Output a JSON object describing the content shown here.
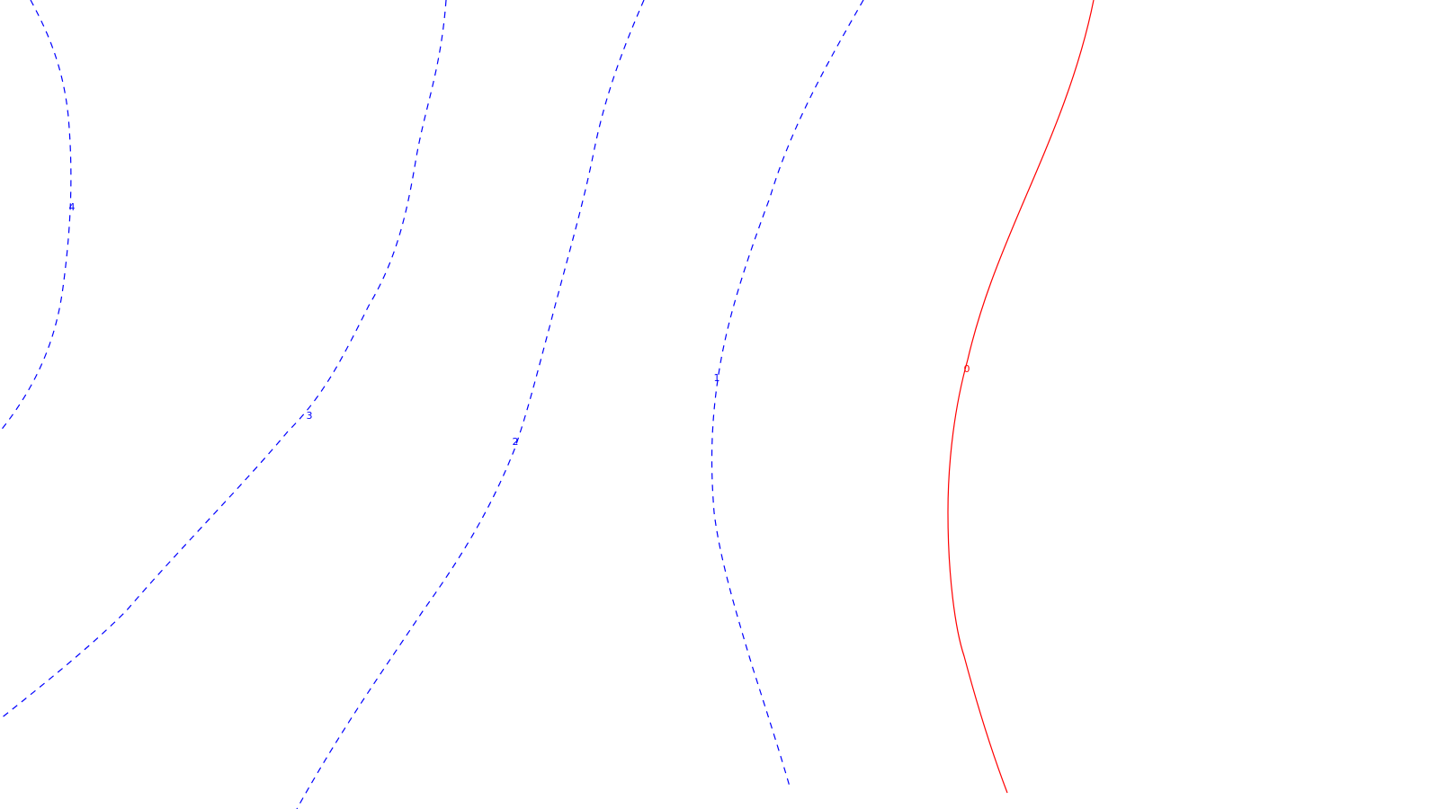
{
  "map": {
    "background_color": "#ffffff",
    "contours": [
      {
        "level": "4",
        "label": "4",
        "color": "#0000ff",
        "style": "dashed"
      },
      {
        "level": "3",
        "label": "3",
        "color": "#0000ff",
        "style": "dashed"
      },
      {
        "level": "2",
        "label": "2",
        "color": "#0000ff",
        "style": "dashed"
      },
      {
        "level": "1",
        "label": "1",
        "color": "#0000ff",
        "style": "dashed"
      },
      {
        "level": "0",
        "label": "0",
        "color": "#ff0000",
        "style": "solid"
      }
    ]
  }
}
